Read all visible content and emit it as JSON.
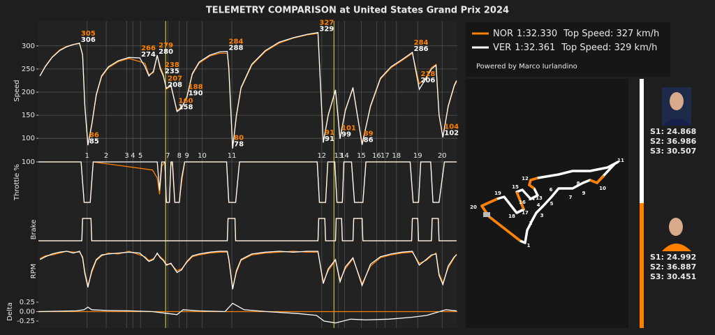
{
  "title": "TELEMETRY COMPARISON at United States Grand Prix 2024",
  "chart_data": [
    {
      "type": "line",
      "ylabel": "Speed",
      "xlim": [
        0,
        5500
      ],
      "ylim": [
        58,
        348
      ],
      "yticks": [
        100,
        150,
        200,
        250,
        300
      ],
      "grid": true,
      "x": [
        20,
        90,
        180,
        280,
        370,
        460,
        540,
        580,
        610,
        650,
        700,
        760,
        830,
        920,
        1050,
        1190,
        1330,
        1400,
        1450,
        1510,
        1560,
        1600,
        1640,
        1680,
        1740,
        1820,
        1880,
        1950,
        2020,
        2110,
        2250,
        2380,
        2480,
        2500,
        2550,
        2600,
        2660,
        2800,
        2980,
        3160,
        3350,
        3530,
        3670,
        3740,
        3805,
        3900,
        3960,
        4030,
        4130,
        4250,
        4360,
        4490,
        4630,
        4770,
        4910,
        5000,
        5090,
        5160,
        5220,
        5260,
        5310,
        5380,
        5460,
        5490
      ],
      "series": [
        {
          "name": "NOR",
          "lap_time": "1:32.330",
          "top_speed": "Top Speed: 327 km/h",
          "color": "#ff8000",
          "values": [
            235,
            256,
            276,
            291,
            299,
            303,
            305,
            282,
            172,
            86,
            128,
            193,
            233,
            253,
            266,
            273,
            266,
            262,
            238,
            242,
            279,
            255,
            238,
            207,
            213,
            160,
            168,
            188,
            238,
            263,
            278,
            284,
            284,
            255,
            80,
            148,
            208,
            258,
            288,
            306,
            317,
            324,
            327,
            91,
            152,
            203,
            101,
            162,
            208,
            89,
            168,
            228,
            253,
            268,
            284,
            218,
            232,
            253,
            260,
            152,
            104,
            168,
            213,
            223
          ]
        },
        {
          "name": "VER",
          "lap_time": "1:32.361",
          "top_speed": "Top Speed: 329 km/h",
          "color": "#ffffff",
          "values": [
            235,
            255,
            275,
            290,
            298,
            303,
            306,
            280,
            170,
            85,
            130,
            195,
            235,
            255,
            268,
            275,
            274,
            255,
            235,
            245,
            280,
            250,
            235,
            208,
            215,
            158,
            165,
            190,
            240,
            265,
            280,
            287,
            288,
            250,
            78,
            150,
            210,
            260,
            290,
            308,
            318,
            325,
            329,
            91,
            150,
            205,
            99,
            160,
            210,
            86,
            170,
            230,
            255,
            270,
            286,
            206,
            230,
            250,
            258,
            150,
            102,
            170,
            215,
            225
          ]
        }
      ],
      "annotations": [
        {
          "x": 540,
          "values": [
            305,
            306
          ]
        },
        {
          "x": 650,
          "values": [
            86,
            85
          ]
        },
        {
          "x": 1330,
          "values": [
            266,
            274
          ]
        },
        {
          "x": 1560,
          "values": [
            279,
            280
          ]
        },
        {
          "x": 1640,
          "values": [
            238,
            235
          ]
        },
        {
          "x": 1680,
          "values": [
            207,
            208
          ]
        },
        {
          "x": 1820,
          "values": [
            160,
            158
          ]
        },
        {
          "x": 1950,
          "values": [
            188,
            190
          ]
        },
        {
          "x": 2480,
          "values": [
            284,
            288
          ]
        },
        {
          "x": 2550,
          "values": [
            80,
            78
          ]
        },
        {
          "x": 3670,
          "values": [
            327,
            329
          ]
        },
        {
          "x": 3740,
          "values": [
            91,
            91
          ]
        },
        {
          "x": 3960,
          "values": [
            101,
            99
          ]
        },
        {
          "x": 4250,
          "values": [
            89,
            86
          ]
        },
        {
          "x": 4910,
          "values": [
            284,
            286
          ]
        },
        {
          "x": 5000,
          "values": [
            218,
            206
          ]
        },
        {
          "x": 5310,
          "values": [
            104,
            102
          ]
        }
      ],
      "corners": {
        "labels": [
          1,
          2,
          3,
          4,
          5,
          7,
          8,
          9,
          10,
          11,
          12,
          13,
          14,
          15,
          16,
          17,
          18,
          19,
          20
        ],
        "x": [
          640,
          890,
          1160,
          1240,
          1340,
          1700,
          1850,
          1950,
          2150,
          2540,
          3720,
          3940,
          4020,
          4240,
          4440,
          4550,
          4700,
          4980,
          5300
        ]
      },
      "sector_lines": {
        "x": [
          1670,
          3880
        ],
        "color": "#e6e24a"
      }
    },
    {
      "type": "line",
      "ylabel": "Throttle %",
      "xlim": [
        0,
        5500
      ],
      "ylim": [
        0,
        100
      ],
      "yticks": [
        100
      ],
      "grid": true,
      "x": [
        0,
        560,
        600,
        680,
        720,
        1500,
        1560,
        1590,
        1620,
        1660,
        1680,
        1720,
        1740,
        1760,
        1790,
        1850,
        1880,
        1920,
        2470,
        2500,
        2590,
        2640,
        3660,
        3690,
        3770,
        3800,
        3890,
        3920,
        3990,
        4010,
        4110,
        4150,
        4260,
        4300,
        4880,
        4920,
        4990,
        5020,
        5150,
        5180,
        5260,
        5330,
        5490
      ],
      "series": [
        {
          "color": "#ff8000",
          "values": [
            100,
            100,
            0,
            0,
            100,
            80,
            60,
            20,
            90,
            100,
            0,
            0,
            100,
            90,
            0,
            0,
            50,
            100,
            100,
            0,
            0,
            100,
            100,
            0,
            0,
            100,
            100,
            0,
            0,
            100,
            100,
            0,
            0,
            100,
            100,
            0,
            0,
            100,
            100,
            0,
            0,
            100,
            100
          ]
        },
        {
          "color": "#ffffff",
          "values": [
            100,
            100,
            0,
            0,
            100,
            100,
            100,
            30,
            100,
            100,
            0,
            0,
            100,
            100,
            0,
            0,
            60,
            100,
            100,
            0,
            0,
            100,
            100,
            0,
            0,
            100,
            100,
            0,
            0,
            100,
            100,
            0,
            0,
            100,
            100,
            0,
            0,
            100,
            100,
            0,
            0,
            100,
            100
          ]
        }
      ]
    },
    {
      "type": "line",
      "ylabel": "Brake",
      "xlim": [
        0,
        5500
      ],
      "ylim": [
        0,
        1
      ],
      "yticks": [],
      "grid": false,
      "x": [
        0,
        570,
        580,
        690,
        700,
        2480,
        2490,
        2580,
        2590,
        3670,
        3680,
        3760,
        3770,
        3900,
        3910,
        3980,
        3990,
        4130,
        4140,
        4250,
        4260,
        4900,
        4910,
        4980,
        4990,
        5160,
        5170,
        5250,
        5260,
        5490
      ],
      "series": [
        {
          "color": "#ff8000",
          "values": [
            0,
            0,
            1,
            1,
            0,
            0,
            1,
            1,
            0,
            0,
            1,
            1,
            0,
            0,
            1,
            1,
            0,
            0,
            1,
            1,
            0,
            0,
            1,
            1,
            0,
            0,
            1,
            1,
            0,
            0
          ]
        },
        {
          "color": "#ffffff",
          "values": [
            0,
            0,
            1,
            1,
            0,
            0,
            1,
            1,
            0,
            0,
            1,
            1,
            0,
            0,
            1,
            1,
            0,
            0,
            1,
            1,
            0,
            0,
            1,
            1,
            0,
            0,
            1,
            1,
            0,
            0
          ]
        }
      ]
    },
    {
      "type": "line",
      "ylabel": "RPM",
      "xlim": [
        0,
        5500
      ],
      "ylim": [
        7000,
        12500
      ],
      "yticks": [],
      "grid": false,
      "x": [
        20,
        90,
        180,
        280,
        370,
        460,
        540,
        580,
        610,
        650,
        700,
        760,
        830,
        920,
        1050,
        1190,
        1330,
        1400,
        1450,
        1510,
        1560,
        1600,
        1640,
        1680,
        1740,
        1820,
        1880,
        1950,
        2020,
        2110,
        2250,
        2380,
        2480,
        2500,
        2550,
        2600,
        2660,
        2800,
        2980,
        3160,
        3350,
        3530,
        3670,
        3740,
        3805,
        3900,
        3960,
        4030,
        4130,
        4250,
        4360,
        4490,
        4630,
        4770,
        4910,
        5000,
        5090,
        5160,
        5220,
        5260,
        5310,
        5380,
        5460,
        5490
      ],
      "series": [
        {
          "color": "#ff8000",
          "values": [
            11100,
            11400,
            11500,
            11700,
            11900,
            11800,
            11800,
            11300,
            9700,
            8200,
            9600,
            10900,
            11400,
            11700,
            11600,
            11900,
            11500,
            11300,
            10900,
            11100,
            11600,
            11300,
            11000,
            10500,
            10500,
            9800,
            10000,
            10700,
            11300,
            11500,
            11700,
            11800,
            11800,
            11100,
            8000,
            9600,
            10900,
            11500,
            11700,
            11800,
            11900,
            11800,
            11800,
            8600,
            9800,
            10900,
            8800,
            10000,
            11100,
            8400,
            10300,
            11200,
            11500,
            11700,
            11800,
            10600,
            10900,
            11400,
            11700,
            9500,
            8500,
            10100,
            11200,
            11600
          ]
        },
        {
          "color": "#ffffff",
          "values": [
            11000,
            11300,
            11600,
            11800,
            11900,
            11700,
            11900,
            11200,
            9500,
            8000,
            9800,
            11000,
            11500,
            11600,
            11700,
            11800,
            11700,
            11200,
            10800,
            11000,
            11700,
            11200,
            10900,
            10400,
            10600,
            9600,
            9900,
            10800,
            11400,
            11600,
            11800,
            11900,
            11900,
            11000,
            7800,
            9800,
            11000,
            11600,
            11800,
            11900,
            11800,
            11900,
            11900,
            8400,
            10000,
            11000,
            8600,
            10200,
            11200,
            8200,
            10500,
            11300,
            11600,
            11800,
            11900,
            10400,
            11000,
            11500,
            11600,
            9300,
            8300,
            10300,
            11300,
            11500
          ]
        }
      ]
    },
    {
      "type": "line",
      "ylabel": "Delta",
      "xlim": [
        0,
        5500
      ],
      "ylim": [
        -0.38,
        0.38
      ],
      "yticks": [
        0.25,
        {
          "value": 0,
          "label": "0.00"
        },
        -0.25
      ],
      "grid": false,
      "zero_line_color": "#ff8000",
      "x": [
        0,
        500,
        600,
        650,
        700,
        900,
        1200,
        1500,
        1700,
        1820,
        1900,
        2100,
        2450,
        2550,
        2700,
        3000,
        3400,
        3650,
        3750,
        3900,
        4100,
        4300,
        4600,
        4900,
        5100,
        5300,
        5350,
        5490
      ],
      "series": [
        {
          "color": "#ffffff",
          "values": [
            0,
            0.02,
            0.05,
            0.12,
            0.05,
            0.03,
            0.02,
            0,
            -0.05,
            -0.08,
            0.05,
            0.02,
            0,
            0.22,
            0.05,
            0,
            -0.05,
            -0.1,
            -0.25,
            -0.3,
            -0.2,
            -0.22,
            -0.2,
            -0.15,
            -0.1,
            0.02,
            0.05,
            0.02
          ]
        }
      ]
    }
  ],
  "credit": "Powered by Marco Iurlandino",
  "track_map": {
    "corners": [
      1,
      2,
      3,
      4,
      5,
      6,
      7,
      8,
      9,
      10,
      11,
      12,
      13,
      14,
      15,
      16,
      17,
      18,
      19,
      20
    ]
  },
  "sector_times": [
    [
      "S1: 24.868",
      "S2: 36.986",
      "S3: 30.507"
    ],
    [
      "S1: 24.992",
      "S2: 36.887",
      "S3: 30.451"
    ]
  ]
}
